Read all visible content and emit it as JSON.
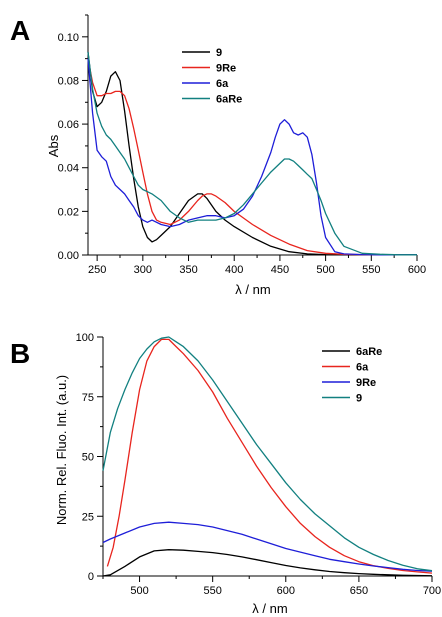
{
  "chart_data": [
    {
      "panel": "A",
      "type": "line",
      "xlabel": "λ / nm",
      "ylabel": "Abs",
      "xlim": [
        240,
        600
      ],
      "ylim": [
        0,
        0.11
      ],
      "xticks": [
        250,
        300,
        350,
        400,
        450,
        500,
        550,
        600
      ],
      "yticks": [
        0.0,
        0.02,
        0.04,
        0.06,
        0.08,
        0.1
      ],
      "ytick_labels": [
        "0.00",
        "0.02",
        "0.04",
        "0.06",
        "0.08",
        "0.10"
      ],
      "legend_position": "top-right",
      "series": [
        {
          "name": "9",
          "color": "#000000",
          "x": [
            240,
            245,
            250,
            255,
            260,
            265,
            270,
            275,
            280,
            285,
            290,
            295,
            300,
            305,
            310,
            315,
            320,
            330,
            340,
            350,
            360,
            365,
            370,
            380,
            390,
            400,
            420,
            440,
            460,
            480,
            500,
            520,
            540,
            560,
            580,
            600
          ],
          "y": [
            0.093,
            0.075,
            0.068,
            0.07,
            0.075,
            0.082,
            0.084,
            0.08,
            0.066,
            0.05,
            0.035,
            0.022,
            0.013,
            0.008,
            0.006,
            0.007,
            0.009,
            0.013,
            0.019,
            0.025,
            0.028,
            0.028,
            0.026,
            0.02,
            0.016,
            0.013,
            0.008,
            0.004,
            0.0015,
            0.0005,
            0.0002,
            0.0001,
            0.0001,
            0.0001,
            0.0001,
            0.0001
          ]
        },
        {
          "name": "9Re",
          "color": "#e8251e",
          "x": [
            240,
            245,
            250,
            255,
            260,
            265,
            270,
            275,
            280,
            285,
            290,
            295,
            300,
            305,
            310,
            315,
            320,
            330,
            340,
            350,
            360,
            365,
            370,
            375,
            380,
            390,
            400,
            420,
            440,
            460,
            480,
            500,
            520,
            540,
            560,
            580,
            600
          ],
          "y": [
            0.09,
            0.079,
            0.073,
            0.073,
            0.074,
            0.074,
            0.075,
            0.075,
            0.073,
            0.067,
            0.058,
            0.048,
            0.038,
            0.028,
            0.02,
            0.016,
            0.015,
            0.014,
            0.016,
            0.02,
            0.025,
            0.027,
            0.028,
            0.028,
            0.027,
            0.024,
            0.02,
            0.014,
            0.009,
            0.005,
            0.002,
            0.0008,
            0.0003,
            0.0002,
            0.0001,
            0.0001,
            0.0001
          ]
        },
        {
          "name": "6a",
          "color": "#1e1ed8",
          "x": [
            240,
            245,
            250,
            255,
            260,
            265,
            270,
            275,
            280,
            285,
            290,
            295,
            300,
            305,
            310,
            320,
            330,
            340,
            350,
            360,
            370,
            380,
            390,
            400,
            410,
            420,
            430,
            440,
            445,
            450,
            455,
            460,
            465,
            470,
            475,
            480,
            485,
            490,
            495,
            500,
            510,
            520,
            540,
            560,
            580,
            600
          ],
          "y": [
            0.09,
            0.065,
            0.048,
            0.045,
            0.043,
            0.036,
            0.032,
            0.03,
            0.028,
            0.025,
            0.022,
            0.018,
            0.016,
            0.015,
            0.016,
            0.014,
            0.013,
            0.014,
            0.016,
            0.017,
            0.018,
            0.018,
            0.017,
            0.018,
            0.021,
            0.027,
            0.036,
            0.047,
            0.054,
            0.06,
            0.062,
            0.06,
            0.056,
            0.055,
            0.056,
            0.054,
            0.046,
            0.033,
            0.018,
            0.008,
            0.0015,
            0.0005,
            0.0002,
            0.0001,
            0.0001,
            0.0001
          ]
        },
        {
          "name": "6aRe",
          "color": "#128080",
          "x": [
            240,
            245,
            250,
            255,
            260,
            265,
            270,
            275,
            280,
            285,
            290,
            295,
            300,
            305,
            310,
            320,
            330,
            340,
            350,
            360,
            370,
            380,
            390,
            400,
            410,
            420,
            430,
            440,
            450,
            455,
            460,
            465,
            470,
            475,
            480,
            485,
            490,
            495,
            500,
            510,
            520,
            540,
            560,
            580,
            600
          ],
          "y": [
            0.093,
            0.076,
            0.065,
            0.059,
            0.055,
            0.053,
            0.05,
            0.047,
            0.044,
            0.04,
            0.036,
            0.032,
            0.03,
            0.029,
            0.028,
            0.025,
            0.02,
            0.017,
            0.015,
            0.016,
            0.016,
            0.016,
            0.017,
            0.019,
            0.023,
            0.028,
            0.033,
            0.038,
            0.042,
            0.044,
            0.044,
            0.043,
            0.041,
            0.039,
            0.037,
            0.035,
            0.03,
            0.025,
            0.019,
            0.01,
            0.004,
            0.0008,
            0.0003,
            0.0001,
            0.0001
          ]
        }
      ]
    },
    {
      "panel": "B",
      "type": "line",
      "xlabel": "λ / nm",
      "ylabel": "Norm. Rel. Fluo. Int. (a.u.)",
      "xlim": [
        475,
        700
      ],
      "ylim": [
        0,
        100
      ],
      "xticks": [
        500,
        550,
        600,
        650,
        700
      ],
      "yticks": [
        0,
        25,
        50,
        75,
        100
      ],
      "ytick_labels": [
        "0",
        "25",
        "50",
        "75",
        "100"
      ],
      "legend_position": "top-right",
      "series": [
        {
          "name": "6aRe",
          "color": "#000000",
          "x": [
            475,
            480,
            490,
            500,
            510,
            520,
            530,
            540,
            550,
            560,
            570,
            580,
            590,
            600,
            610,
            620,
            630,
            640,
            650,
            660,
            670,
            680,
            690,
            700
          ],
          "y": [
            0,
            0.5,
            4,
            8,
            10.5,
            11,
            10.8,
            10.3,
            9.8,
            9,
            8,
            6.8,
            5.6,
            4.4,
            3.4,
            2.6,
            1.9,
            1.4,
            1.0,
            0.7,
            0.5,
            0.3,
            0.2,
            0.1
          ]
        },
        {
          "name": "6a",
          "color": "#e8251e",
          "x": [
            478,
            482,
            486,
            490,
            495,
            500,
            505,
            510,
            515,
            520,
            525,
            530,
            540,
            550,
            560,
            570,
            580,
            590,
            600,
            610,
            620,
            630,
            640,
            650,
            660,
            670,
            680,
            690,
            700
          ],
          "y": [
            4,
            12,
            25,
            40,
            60,
            78,
            90,
            96,
            99,
            99,
            96,
            93,
            86,
            77,
            66,
            56,
            46,
            37,
            29,
            22,
            16.5,
            12,
            8.5,
            6,
            4.3,
            3.2,
            2.3,
            1.7,
            1.2
          ]
        },
        {
          "name": "9Re",
          "color": "#1e1ed8",
          "x": [
            475,
            480,
            490,
            500,
            510,
            520,
            530,
            540,
            550,
            560,
            570,
            580,
            590,
            600,
            610,
            620,
            630,
            640,
            650,
            660,
            670,
            680,
            690,
            700
          ],
          "y": [
            14,
            15.5,
            18,
            20.5,
            22,
            22.5,
            22,
            21.5,
            20.5,
            19,
            17.5,
            15.5,
            13.5,
            11.5,
            10,
            8.5,
            7,
            6,
            5,
            4.2,
            3.5,
            2.8,
            2.3,
            2
          ]
        },
        {
          "name": "9",
          "color": "#128080",
          "x": [
            475,
            480,
            485,
            490,
            495,
            500,
            505,
            510,
            515,
            520,
            525,
            530,
            540,
            550,
            560,
            570,
            580,
            590,
            600,
            610,
            620,
            630,
            640,
            650,
            660,
            670,
            680,
            690,
            700
          ],
          "y": [
            44,
            60,
            70,
            78,
            85,
            91,
            95,
            98,
            99.5,
            100,
            98,
            96,
            90,
            82,
            73,
            64,
            55,
            47,
            39,
            32,
            26,
            21,
            16,
            12,
            9,
            6.5,
            4.5,
            3,
            2.2
          ]
        }
      ]
    }
  ],
  "panels": {
    "A": {
      "letter": "A",
      "ylabel": "Abs",
      "xlabel": "λ / nm",
      "legend": [
        "9",
        "9Re",
        "6a",
        "6aRe"
      ]
    },
    "B": {
      "letter": "B",
      "ylabel": "Norm. Rel. Fluo. Int. (a.u.)",
      "xlabel": "λ / nm",
      "legend": [
        "6aRe",
        "6a",
        "9Re",
        "9"
      ]
    }
  }
}
